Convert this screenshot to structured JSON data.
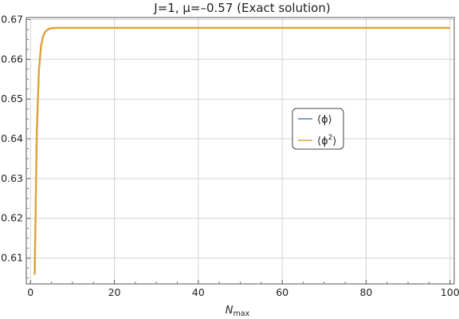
{
  "chart_data": {
    "type": "line",
    "title": "J=1, μ=–0.57 (Exact solution)",
    "xlabel": "N",
    "xlabel_sub": "max",
    "ylabel": "",
    "xlim": [
      -1,
      101
    ],
    "ylim": [
      0.6035,
      0.6705
    ],
    "x_ticks": [
      0,
      20,
      40,
      60,
      80,
      100
    ],
    "y_ticks": [
      0.61,
      0.62,
      0.63,
      0.64,
      0.65,
      0.66,
      0.67
    ],
    "grid": true,
    "legend_position": "center-right",
    "series": [
      {
        "name": "⟨ϕ⟩",
        "color": "#5b7fb8",
        "x": [
          1,
          1.5,
          2,
          2.5,
          3,
          3.5,
          4,
          4.5,
          5,
          6,
          7,
          8,
          10,
          15,
          20,
          30,
          40,
          50,
          60,
          70,
          80,
          90,
          100
        ],
        "y": [
          0.6058,
          0.6415,
          0.6571,
          0.6632,
          0.6658,
          0.6669,
          0.6674,
          0.6677,
          0.6678,
          0.6679,
          0.6679,
          0.6679,
          0.6679,
          0.6679,
          0.6679,
          0.6679,
          0.6679,
          0.6679,
          0.6679,
          0.6679,
          0.6679,
          0.6679,
          0.6679
        ]
      },
      {
        "name": "⟨ϕ²⟩",
        "color": "#dda43a",
        "x": [
          1,
          1.5,
          2,
          2.5,
          3,
          3.5,
          4,
          4.5,
          5,
          6,
          7,
          8,
          10,
          15,
          20,
          30,
          40,
          50,
          60,
          70,
          80,
          90,
          100
        ],
        "y": [
          0.6058,
          0.6415,
          0.6571,
          0.6632,
          0.6658,
          0.6669,
          0.6674,
          0.6677,
          0.6678,
          0.6679,
          0.6679,
          0.6679,
          0.6679,
          0.6679,
          0.6679,
          0.6679,
          0.6679,
          0.6679,
          0.6679,
          0.6679,
          0.6679,
          0.6679,
          0.6679
        ]
      }
    ],
    "legend": {
      "entries": [
        {
          "base": "⟨ϕ⟩",
          "sup": ""
        },
        {
          "base": "⟨ϕ",
          "sup": "2",
          "close": "⟩"
        }
      ]
    }
  }
}
